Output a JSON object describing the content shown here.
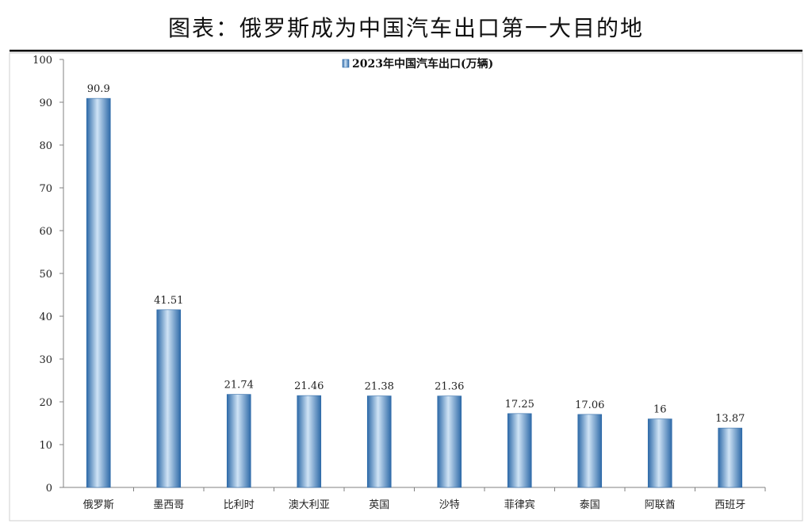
{
  "page": {
    "title": "图表：俄罗斯成为中国汽车出口第一大目的地"
  },
  "colors": {
    "bar": "#4f8ec9",
    "bar_dark": "#2e6aa8",
    "bar_light": "#cfe3f5",
    "axis": "#808080",
    "rule": "#000000",
    "text": "#222222"
  },
  "chart_data": {
    "type": "bar",
    "title": "",
    "xlabel": "",
    "ylabel": "",
    "ylim": [
      0,
      100
    ],
    "yticks": [
      0,
      10,
      20,
      30,
      40,
      50,
      60,
      70,
      80,
      90,
      100
    ],
    "grid": false,
    "legend_position": "top-center",
    "categories": [
      "俄罗斯",
      "墨西哥",
      "比利时",
      "澳大利亚",
      "英国",
      "沙特",
      "菲律宾",
      "泰国",
      "阿联酋",
      "西班牙"
    ],
    "series": [
      {
        "name": "2023年中国汽车出口(万辆)",
        "values": [
          90.9,
          41.51,
          21.74,
          21.46,
          21.38,
          21.36,
          17.25,
          17.06,
          16,
          13.87
        ],
        "labels": [
          "90.9",
          "41.51",
          "21.74",
          "21.46",
          "21.38",
          "21.36",
          "17.25",
          "17.06",
          "16",
          "13.87"
        ]
      }
    ]
  }
}
